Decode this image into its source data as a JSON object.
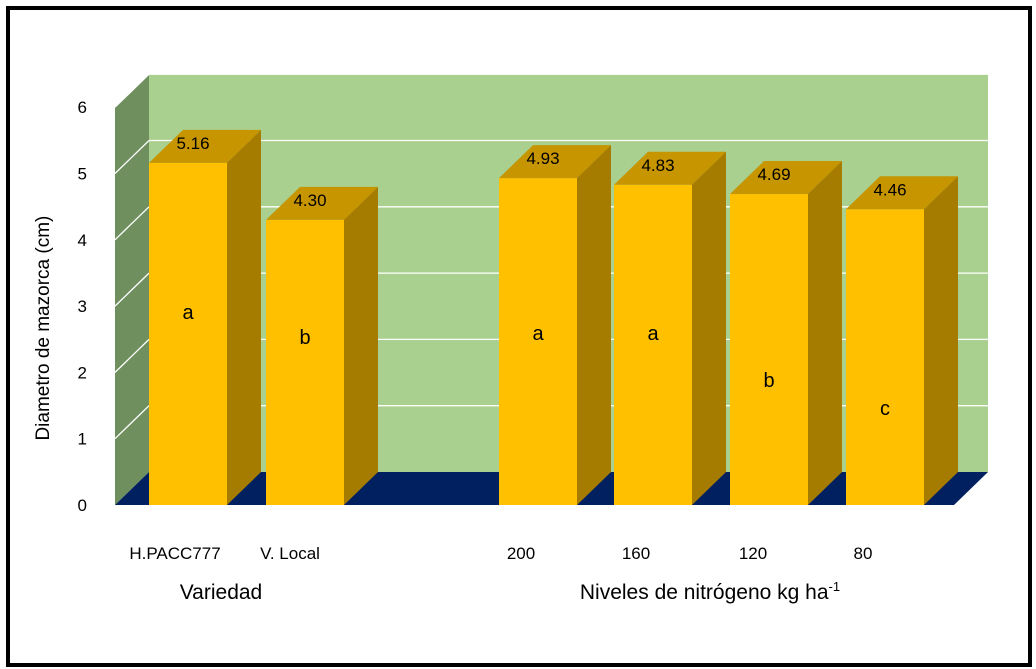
{
  "chart_data": {
    "type": "bar",
    "ylabel": "Diametro de mazorca (cm)",
    "ylim": [
      0,
      6
    ],
    "yticks": [
      "0",
      "1",
      "2",
      "3",
      "4",
      "5",
      "6"
    ],
    "categories": [
      "H.PACC777",
      "V. Local",
      "200",
      "160",
      "120",
      "80"
    ],
    "values": [
      5.16,
      4.3,
      4.93,
      4.83,
      4.69,
      4.46
    ],
    "value_labels": [
      "5.16",
      "4.30",
      "4.93",
      "4.83",
      "4.69",
      "4.46"
    ],
    "significance": [
      "a",
      "b",
      "a",
      "a",
      "b",
      "c"
    ],
    "groups": [
      {
        "label": "Variedad",
        "label_sup": "",
        "members": [
          "H.PACC777",
          "V. Local"
        ]
      },
      {
        "label": "Niveles de nitrógeno kg ha",
        "label_sup": "-1",
        "members": [
          "200",
          "160",
          "120",
          "80"
        ]
      }
    ],
    "grid": true,
    "legend": "none",
    "colors": {
      "bar_front": "#ffc000",
      "bar_top": "#c69500",
      "bar_side": "#a67c00",
      "back_wall": "#a9d08e",
      "side_wall": "#6f8f5e",
      "floor": "#002060",
      "gridline": "#ffffff"
    }
  }
}
